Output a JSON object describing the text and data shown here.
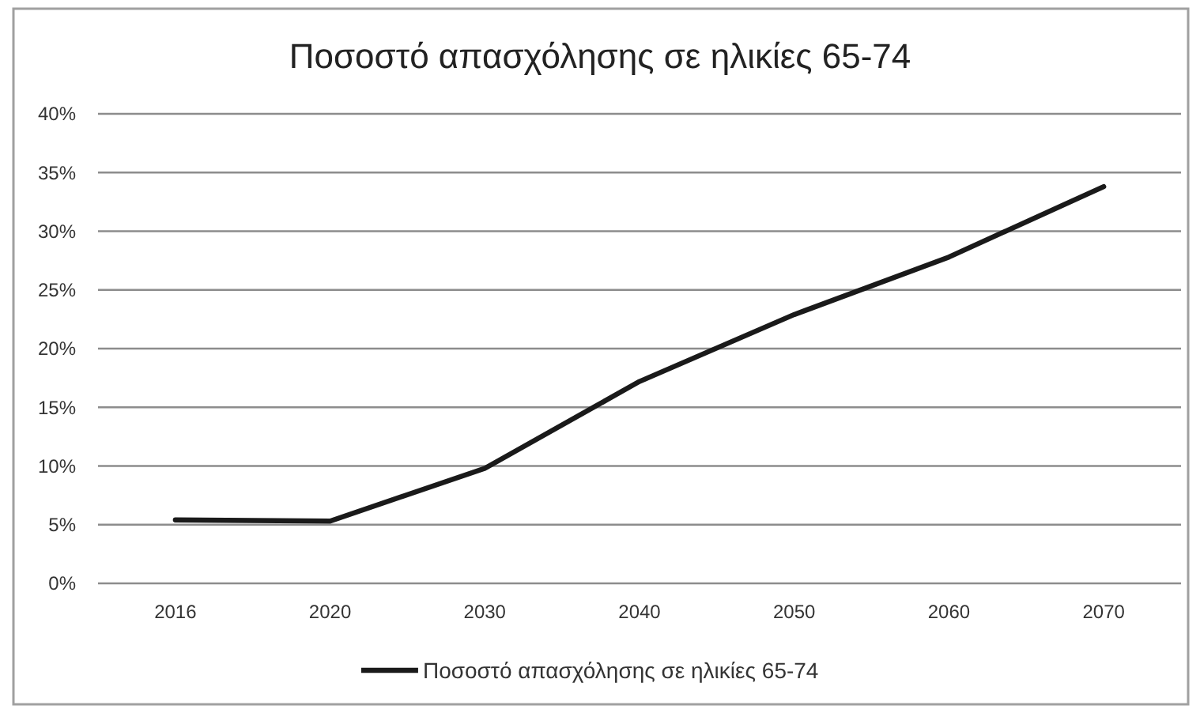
{
  "chart_data": {
    "type": "line",
    "title": "Ποσοστό απασχόλησης σε ηλικίες 65-74",
    "categories": [
      "2016",
      "2020",
      "2030",
      "2040",
      "2050",
      "2060",
      "2070"
    ],
    "series": [
      {
        "name": "Ποσοστό απασχόλησης σε ηλικίες 65-74",
        "color": "#1a1a1a",
        "values": [
          5.4,
          5.3,
          9.8,
          17.2,
          22.9,
          27.8,
          33.8
        ]
      }
    ],
    "ylim": [
      0,
      40
    ],
    "yticks": [
      {
        "value": 0,
        "label": "0%"
      },
      {
        "value": 5,
        "label": "5%"
      },
      {
        "value": 10,
        "label": "10%"
      },
      {
        "value": 15,
        "label": "15%"
      },
      {
        "value": 20,
        "label": "20%"
      },
      {
        "value": 25,
        "label": "25%"
      },
      {
        "value": 30,
        "label": "30%"
      },
      {
        "value": 35,
        "label": "35%"
      },
      {
        "value": 40,
        "label": "40%"
      }
    ],
    "grid": "y",
    "legend": "bottom",
    "marker": "none",
    "line_style": "solid"
  }
}
